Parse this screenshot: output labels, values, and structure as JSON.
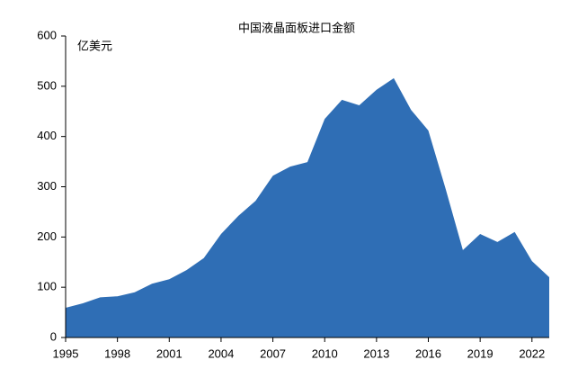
{
  "chart_data": {
    "type": "area",
    "title": "中国液晶面板进口金额",
    "y_unit": "亿美元",
    "x": [
      1995,
      1996,
      1997,
      1998,
      1999,
      2000,
      2001,
      2002,
      2003,
      2004,
      2005,
      2006,
      2007,
      2008,
      2009,
      2010,
      2011,
      2012,
      2013,
      2014,
      2015,
      2016,
      2017,
      2018,
      2019,
      2020,
      2021,
      2022,
      2023
    ],
    "values": [
      59,
      68,
      80,
      82,
      90,
      107,
      116,
      134,
      158,
      206,
      242,
      272,
      322,
      340,
      349,
      435,
      473,
      462,
      493,
      516,
      453,
      412,
      296,
      174,
      206,
      190,
      210,
      152,
      120
    ],
    "color": "#2f6eb5",
    "xlim": [
      1995,
      2023
    ],
    "xticks": [
      1995,
      1998,
      2001,
      2004,
      2007,
      2010,
      2013,
      2016,
      2019,
      2022
    ],
    "ylim": [
      0,
      600
    ],
    "yticks": [
      0,
      100,
      200,
      300,
      400,
      500,
      600
    ],
    "grid": false
  }
}
